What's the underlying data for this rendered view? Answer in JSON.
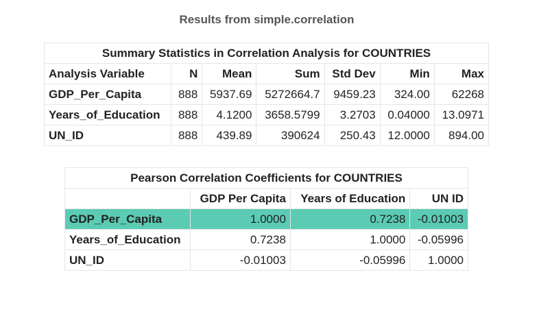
{
  "page_title": "Results from simple.correlation",
  "summary": {
    "caption": "Summary Statistics in Correlation Analysis for COUNTRIES",
    "headers": [
      "Analysis Variable",
      "N",
      "Mean",
      "Sum",
      "Std Dev",
      "Min",
      "Max"
    ],
    "rows": [
      [
        "GDP_Per_Capita",
        "888",
        "5937.69",
        "5272664.7",
        "9459.23",
        "324.00",
        "62268"
      ],
      [
        "Years_of_Education",
        "888",
        "4.1200",
        "3658.5799",
        "3.2703",
        "0.04000",
        "13.0971"
      ],
      [
        "UN_ID",
        "888",
        "439.89",
        "390624",
        "250.43",
        "12.0000",
        "894.00"
      ]
    ]
  },
  "correlation": {
    "caption": "Pearson Correlation Coefficients for COUNTRIES",
    "headers": [
      "",
      "GDP Per Capita",
      "Years of Education",
      "UN ID"
    ],
    "rows": [
      [
        "GDP_Per_Capita",
        "1.0000",
        "0.7238",
        "-0.01003"
      ],
      [
        "Years_of_Education",
        "0.7238",
        "1.0000",
        "-0.05996"
      ],
      [
        "UN_ID",
        "-0.01003",
        "-0.05996",
        "1.0000"
      ]
    ],
    "highlight_color": "#5bcbb4"
  }
}
